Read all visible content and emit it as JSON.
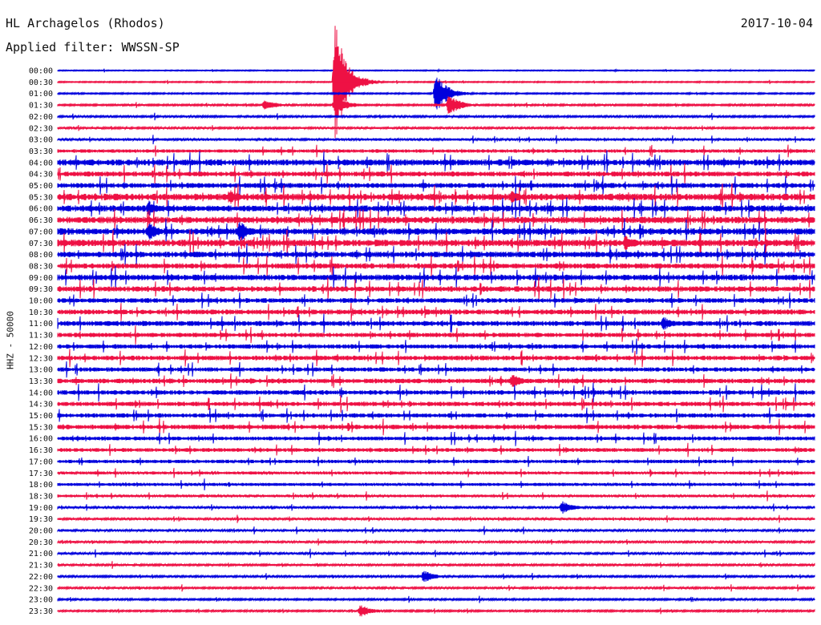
{
  "station": "HL Archagelos (Rhodos)",
  "date": "2017-10-04",
  "filter_label": "Applied filter: WWSSN-SP",
  "y_axis_label": "HHZ - 50000",
  "colors": {
    "odd_rows": "#0000dd",
    "even_rows": "#ee1144"
  },
  "chart_data": {
    "type": "line",
    "title": "HL Archagelos (Rhodos)",
    "subtitle": "Applied filter: WWSSN-SP",
    "ylabel": "HHZ - 50000",
    "rows": [
      "00:00",
      "00:30",
      "01:00",
      "01:30",
      "02:00",
      "02:30",
      "03:00",
      "03:30",
      "04:00",
      "04:30",
      "05:00",
      "05:30",
      "06:00",
      "06:30",
      "07:00",
      "07:30",
      "08:00",
      "08:30",
      "09:00",
      "09:30",
      "10:00",
      "10:30",
      "11:00",
      "11:30",
      "12:00",
      "12:30",
      "13:00",
      "13:30",
      "14:00",
      "14:30",
      "15:00",
      "15:30",
      "16:00",
      "16:30",
      "17:00",
      "17:30",
      "18:00",
      "18:30",
      "19:00",
      "19:30",
      "20:00",
      "20:30",
      "21:00",
      "21:30",
      "22:00",
      "22:30",
      "23:00",
      "23:30"
    ],
    "row_duration_minutes": 30,
    "noise_level": [
      0.5,
      0.6,
      0.7,
      0.9,
      1.0,
      1.0,
      1.3,
      1.8,
      3.2,
      2.6,
      2.6,
      3.5,
      3.2,
      3.4,
      3.4,
      3.5,
      3.0,
      2.8,
      3.0,
      2.8,
      2.4,
      2.6,
      2.6,
      2.3,
      2.3,
      2.4,
      2.2,
      2.4,
      2.4,
      2.3,
      2.2,
      2.4,
      2.0,
      2.0,
      1.8,
      1.6,
      1.6,
      1.4,
      1.2,
      1.2,
      1.2,
      1.1,
      1.1,
      1.0,
      1.0,
      1.0,
      0.9,
      0.9
    ],
    "events": [
      {
        "row": 1,
        "minute": 11.0,
        "amplitude": 75
      },
      {
        "row": 2,
        "minute": 15.0,
        "amplitude": 26
      },
      {
        "row": 3,
        "minute": 11.0,
        "amplitude": 14
      },
      {
        "row": 3,
        "minute": 15.5,
        "amplitude": 14
      },
      {
        "row": 3,
        "minute": 8.2,
        "amplitude": 8
      },
      {
        "row": 11,
        "minute": 6.8,
        "amplitude": 10
      },
      {
        "row": 11,
        "minute": 18.0,
        "amplitude": 8
      },
      {
        "row": 15,
        "minute": 22.5,
        "amplitude": 10
      },
      {
        "row": 14,
        "minute": 3.6,
        "amplitude": 12
      },
      {
        "row": 14,
        "minute": 7.2,
        "amplitude": 14
      },
      {
        "row": 12,
        "minute": 3.6,
        "amplitude": 10
      },
      {
        "row": 27,
        "minute": 18.0,
        "amplitude": 9
      },
      {
        "row": 22,
        "minute": 24.0,
        "amplitude": 9
      },
      {
        "row": 38,
        "minute": 20.0,
        "amplitude": 8
      },
      {
        "row": 44,
        "minute": 14.5,
        "amplitude": 8
      },
      {
        "row": 47,
        "minute": 12.0,
        "amplitude": 8
      }
    ]
  }
}
